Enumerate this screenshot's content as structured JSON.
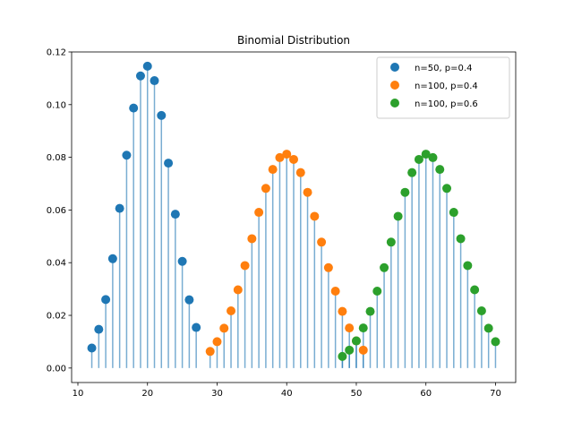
{
  "chart_data": {
    "type": "scatter",
    "title": "Binomial Distribution",
    "xlabel": "",
    "ylabel": "",
    "xlim": [
      9.1,
      72.9
    ],
    "ylim": [
      -0.0055,
      0.12
    ],
    "xticks": [
      10,
      20,
      30,
      40,
      50,
      60,
      70
    ],
    "yticks": [
      0.0,
      0.02,
      0.04,
      0.06,
      0.08,
      0.1,
      0.12
    ],
    "ytick_labels": [
      "0.00",
      "0.02",
      "0.04",
      "0.06",
      "0.08",
      "0.10",
      "0.12"
    ],
    "grid": false,
    "legend_position": "top-right",
    "stem_color": "#1f77b4",
    "series": [
      {
        "name": "n=50, p=0.4",
        "color": "#1f77b4",
        "x": [
          12,
          13,
          14,
          15,
          16,
          17,
          18,
          19,
          20,
          21,
          22,
          23,
          24,
          25,
          26,
          27
        ],
        "y": [
          0.0076,
          0.0147,
          0.026,
          0.0415,
          0.0606,
          0.0808,
          0.0987,
          0.1109,
          0.1146,
          0.1091,
          0.0959,
          0.0778,
          0.0584,
          0.0405,
          0.0259,
          0.0154
        ]
      },
      {
        "name": "n=100, p=0.4",
        "color": "#ff7f0e",
        "x": [
          29,
          30,
          31,
          32,
          33,
          34,
          35,
          36,
          37,
          38,
          39,
          40,
          41,
          42,
          43,
          44,
          45,
          46,
          47,
          48,
          49,
          50,
          51
        ],
        "y": [
          0.0063,
          0.01,
          0.0151,
          0.0217,
          0.0297,
          0.0389,
          0.0491,
          0.0591,
          0.0682,
          0.0754,
          0.0799,
          0.0812,
          0.0792,
          0.0742,
          0.0667,
          0.0576,
          0.0478,
          0.0381,
          0.0292,
          0.0215,
          0.0152,
          0.0103,
          0.0068
        ]
      },
      {
        "name": "n=100, p=0.6",
        "color": "#2ca02c",
        "x": [
          48,
          49,
          50,
          51,
          52,
          53,
          54,
          55,
          56,
          57,
          58,
          59,
          60,
          61,
          62,
          63,
          64,
          65,
          66,
          67,
          68,
          69,
          70
        ],
        "y": [
          0.0044,
          0.0068,
          0.0103,
          0.0152,
          0.0215,
          0.0292,
          0.0381,
          0.0478,
          0.0576,
          0.0667,
          0.0742,
          0.0792,
          0.0812,
          0.0799,
          0.0754,
          0.0682,
          0.0591,
          0.0491,
          0.0389,
          0.0297,
          0.0217,
          0.0151,
          0.01
        ]
      }
    ]
  }
}
